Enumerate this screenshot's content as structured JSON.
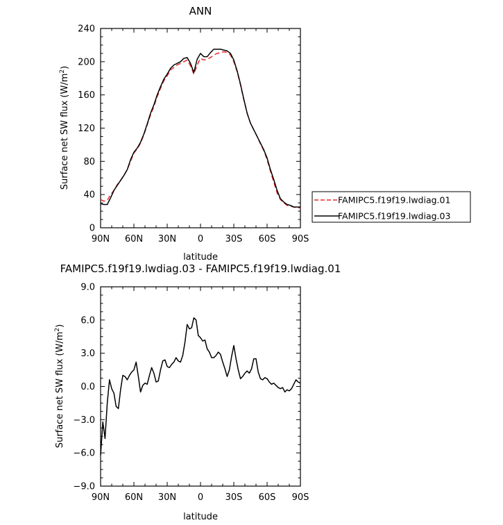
{
  "chart_data": [
    {
      "type": "line",
      "title": "ANN",
      "xlabel": "latitude",
      "ylabel": "Surface net SW flux (W/m",
      "ylabel_sup": "2",
      "ylabel_close": ")",
      "xlim": [
        90,
        -90
      ],
      "ylim": [
        0,
        240
      ],
      "x_ticks": [
        {
          "value": 90,
          "label": "90N"
        },
        {
          "value": 60,
          "label": "60N"
        },
        {
          "value": 30,
          "label": "30N"
        },
        {
          "value": 0,
          "label": "0"
        },
        {
          "value": -30,
          "label": "30S"
        },
        {
          "value": -60,
          "label": "60S"
        },
        {
          "value": -90,
          "label": "90S"
        }
      ],
      "y_ticks": [
        {
          "value": 0,
          "label": "0"
        },
        {
          "value": 40,
          "label": "40"
        },
        {
          "value": 80,
          "label": "80"
        },
        {
          "value": 120,
          "label": "120"
        },
        {
          "value": 160,
          "label": "160"
        },
        {
          "value": 200,
          "label": "200"
        },
        {
          "value": 240,
          "label": "240"
        }
      ],
      "legend": "right",
      "x": [
        90,
        87,
        84,
        81,
        78,
        75,
        72,
        69,
        66,
        63,
        60,
        57,
        54,
        51,
        48,
        45,
        42,
        39,
        36,
        33,
        30,
        27,
        24,
        21,
        18,
        15,
        12,
        9,
        6,
        3,
        0,
        -3,
        -6,
        -9,
        -12,
        -15,
        -18,
        -21,
        -24,
        -27,
        -30,
        -33,
        -36,
        -39,
        -42,
        -45,
        -48,
        -51,
        -54,
        -57,
        -60,
        -63,
        -66,
        -69,
        -72,
        -75,
        -78,
        -81,
        -84,
        -87,
        -90
      ],
      "series": [
        {
          "name": "FAMIPC5.f19f19.lwdiag.01",
          "color": "#e8262a",
          "dash": "dashed",
          "values": [
            34,
            32,
            33,
            40,
            45,
            52,
            57,
            63,
            70,
            80,
            90,
            95,
            102,
            112,
            124,
            136,
            146,
            158,
            168,
            177,
            183,
            190,
            193,
            196,
            198,
            200,
            202,
            195,
            185,
            196,
            204,
            202,
            203,
            205,
            208,
            210,
            211,
            212,
            211,
            208,
            200,
            188,
            172,
            154,
            138,
            126,
            118,
            110,
            101,
            93,
            82,
            68,
            55,
            42,
            34,
            30,
            27,
            26,
            25,
            24,
            24
          ]
        },
        {
          "name": "FAMIPC5.f19f19.lwdiag.03",
          "color": "#000000",
          "dash": "solid",
          "values": [
            29,
            28,
            28,
            36,
            45,
            51,
            57,
            63,
            70,
            82,
            91,
            96,
            103,
            113,
            125,
            138,
            148,
            160,
            170,
            179,
            185,
            192,
            196,
            198,
            200,
            204,
            205,
            198,
            187,
            203,
            210,
            206,
            206,
            211,
            215,
            215,
            215,
            214,
            213,
            210,
            202,
            189,
            173,
            155,
            138,
            126,
            118,
            110,
            102,
            94,
            84,
            70,
            58,
            45,
            35,
            31,
            28,
            27,
            25,
            25,
            25
          ]
        }
      ]
    },
    {
      "type": "line",
      "title": "FAMIPC5.f19f19.lwdiag.03 - FAMIPC5.f19f19.lwdiag.01",
      "xlabel": "latitude",
      "ylabel": "Surface net SW flux (W/m",
      "ylabel_sup": "2",
      "ylabel_close": ")",
      "xlim": [
        90,
        -90
      ],
      "ylim": [
        -9,
        9
      ],
      "x_ticks": [
        {
          "value": 90,
          "label": "90N"
        },
        {
          "value": 60,
          "label": "60N"
        },
        {
          "value": 30,
          "label": "30N"
        },
        {
          "value": 0,
          "label": "0"
        },
        {
          "value": -30,
          "label": "30S"
        },
        {
          "value": -60,
          "label": "60S"
        },
        {
          "value": -90,
          "label": "90S"
        }
      ],
      "y_ticks": [
        {
          "value": 9,
          "label": "9.0"
        },
        {
          "value": 6,
          "label": "6.0"
        },
        {
          "value": 3,
          "label": "3.0"
        },
        {
          "value": 0,
          "label": "0.0"
        },
        {
          "value": -3,
          "label": "−3.0"
        },
        {
          "value": -6,
          "label": "−6.0"
        },
        {
          "value": -9,
          "label": "−9.0"
        }
      ],
      "series": [
        {
          "color": "#000000",
          "x": [
            90,
            88,
            86,
            84,
            82,
            80,
            78,
            76,
            74,
            72,
            70,
            68,
            66,
            64,
            62,
            60,
            58,
            56,
            54,
            52,
            50,
            48,
            46,
            44,
            42,
            40,
            38,
            36,
            34,
            32,
            30,
            28,
            26,
            24,
            22,
            20,
            18,
            16,
            14,
            12,
            10,
            8,
            6,
            4,
            2,
            0,
            -2,
            -4,
            -6,
            -8,
            -10,
            -12,
            -14,
            -16,
            -18,
            -20,
            -22,
            -24,
            -26,
            -28,
            -30,
            -32,
            -34,
            -36,
            -38,
            -40,
            -42,
            -44,
            -46,
            -48,
            -50,
            -52,
            -54,
            -56,
            -58,
            -60,
            -62,
            -64,
            -66,
            -68,
            -70,
            -72,
            -74,
            -76,
            -78,
            -80,
            -82,
            -84,
            -86,
            -88,
            -90
          ],
          "values": [
            -6.2,
            -3.2,
            -4.7,
            -1.5,
            0.6,
            -0.2,
            -0.6,
            -1.8,
            -2.0,
            -0.3,
            1.0,
            0.9,
            0.6,
            1.0,
            1.3,
            1.5,
            2.2,
            0.9,
            -0.5,
            0.1,
            0.3,
            0.2,
            1.0,
            1.7,
            1.2,
            0.4,
            0.5,
            1.5,
            2.3,
            2.4,
            1.8,
            1.7,
            2.0,
            2.2,
            2.6,
            2.3,
            2.2,
            2.8,
            4.0,
            5.6,
            5.2,
            5.3,
            6.2,
            6.0,
            4.6,
            4.4,
            4.1,
            4.2,
            3.4,
            3.1,
            2.6,
            2.6,
            2.8,
            3.1,
            2.9,
            2.2,
            1.6,
            0.9,
            1.5,
            2.7,
            3.7,
            2.5,
            1.5,
            0.7,
            0.9,
            1.2,
            1.4,
            1.2,
            1.6,
            2.5,
            2.5,
            1.3,
            0.7,
            0.6,
            0.8,
            0.7,
            0.4,
            0.2,
            0.3,
            0.1,
            -0.1,
            -0.2,
            -0.1,
            -0.5,
            -0.3,
            -0.4,
            -0.2,
            0.2,
            0.6,
            0.4,
            0.3
          ]
        }
      ]
    }
  ]
}
